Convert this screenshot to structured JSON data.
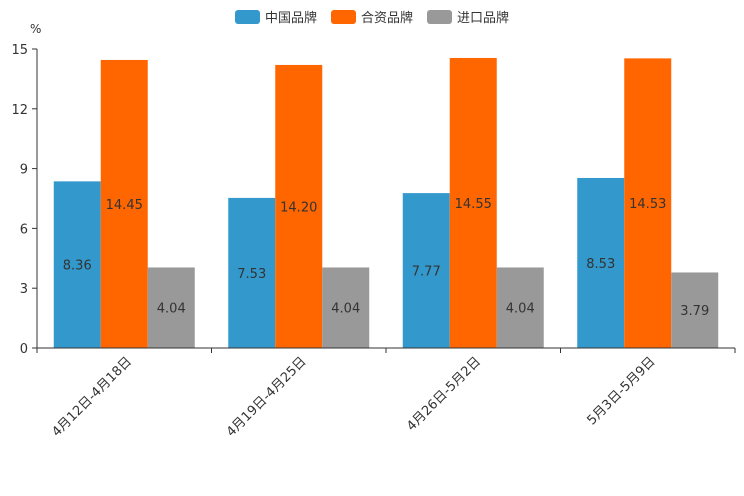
{
  "chart_data": {
    "type": "bar",
    "ylabel": "%",
    "ylim": [
      0,
      15
    ],
    "yticks": [
      0,
      3,
      6,
      9,
      12,
      15
    ],
    "categories": [
      "4月12日-4月18日",
      "4月19日-4月25日",
      "4月26日-5月2日",
      "5月3日-5月9日"
    ],
    "series": [
      {
        "name": "中国品牌",
        "color": "#3399cc",
        "values": [
          8.36,
          7.53,
          7.77,
          8.53
        ],
        "labels": [
          "8.36",
          "7.53",
          "7.77",
          "8.53"
        ]
      },
      {
        "name": "合资品牌",
        "color": "#ff6600",
        "values": [
          14.45,
          14.2,
          14.55,
          14.53
        ],
        "labels": [
          "14.45",
          "14.20",
          "14.55",
          "14.53"
        ]
      },
      {
        "name": "进口品牌",
        "color": "#999999",
        "values": [
          4.04,
          4.04,
          4.04,
          3.79
        ],
        "labels": [
          "4.04",
          "4.04",
          "4.04",
          "3.79"
        ]
      }
    ],
    "legend_position": "top-center",
    "grid": false
  }
}
